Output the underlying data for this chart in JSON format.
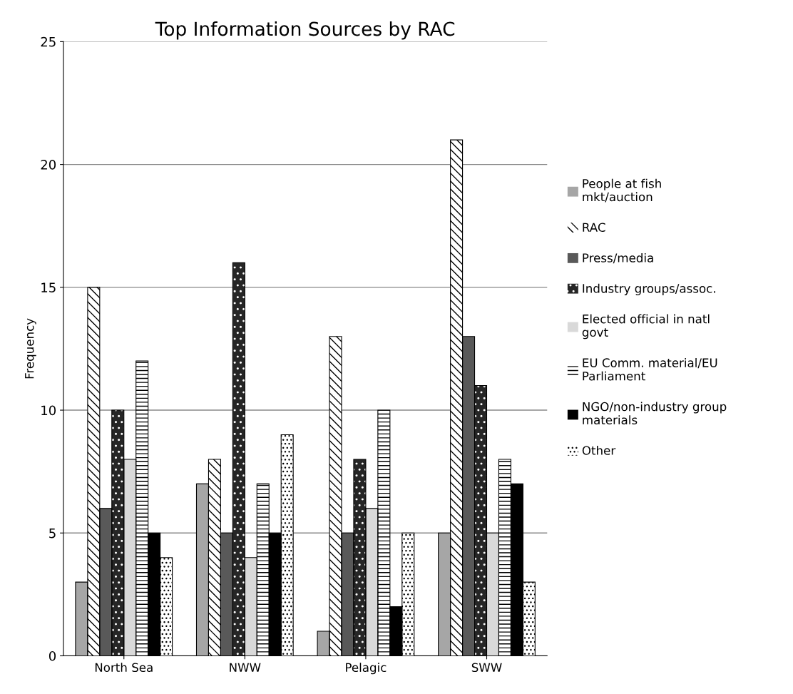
{
  "chart_data": {
    "type": "bar",
    "title": "Top Information Sources by RAC",
    "ylabel": "Frequency",
    "categories": [
      "North Sea",
      "NWW",
      "Pelagic",
      "SWW"
    ],
    "series": [
      {
        "name": "People at fish mkt/auction",
        "color": "#a6a6a6",
        "values": [
          3,
          7,
          1,
          5
        ]
      },
      {
        "name": "RAC",
        "color": "#ffffff",
        "values": [
          15,
          8,
          13,
          21
        ]
      },
      {
        "name": "Press/media",
        "color": "#595959",
        "values": [
          6,
          5,
          5,
          13
        ]
      },
      {
        "name": "Industry groups/assoc.",
        "color": "#262626",
        "values": [
          10,
          16,
          8,
          11
        ]
      },
      {
        "name": "Elected official in natl govt",
        "color": "#d9d9d9",
        "values": [
          8,
          4,
          6,
          5
        ]
      },
      {
        "name": "EU Comm. material/EU Parliament",
        "color": "#ffffff",
        "values": [
          12,
          7,
          10,
          8
        ]
      },
      {
        "name": "NGO/non-industry group materials",
        "color": "#000000",
        "values": [
          5,
          5,
          2,
          7
        ]
      },
      {
        "name": "Other",
        "color": "#ffffff",
        "values": [
          4,
          9,
          5,
          3
        ]
      }
    ],
    "ylim": [
      0,
      25
    ],
    "yticks": [
      0,
      5,
      10,
      15,
      20,
      25
    ],
    "grid": "y",
    "legend": "right"
  }
}
